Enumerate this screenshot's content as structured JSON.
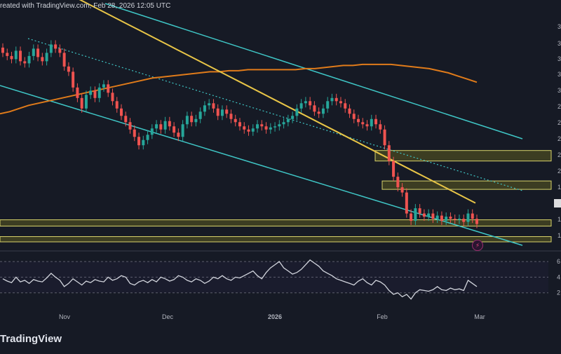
{
  "header": {
    "text": "reated with TradingView.com, Feb 28, 2026 12:05 UTC"
  },
  "brand": {
    "logo_text": "TradingView"
  },
  "icons": {
    "alert": "lightning-icon"
  },
  "colors": {
    "background": "#161a25",
    "up_candle": "#26a69a",
    "down_candle": "#ef5350",
    "ma_orange": "#e07b1a",
    "ma_yellow": "#e8c547",
    "channel_cyan": "#3fc6c6",
    "zone_fill": "#4a4a22",
    "zone_border": "#d8d36a",
    "rsi_line": "#d1d4dc"
  },
  "chart_data": {
    "type": "candlestick",
    "title": "",
    "x_axis": {
      "tick_labels": [
        "Nov",
        "Dec",
        "2026",
        "Feb",
        "Mar"
      ]
    },
    "y_axis_rsi": {
      "tick_labels": [
        "6",
        "4",
        "2"
      ],
      "levels": [
        70,
        50,
        30
      ]
    },
    "price_scale_labels_partial": [
      "3",
      "3",
      "3",
      "3",
      "3",
      "2",
      "2",
      "2",
      "2",
      "2",
      "1",
      "1",
      "1"
    ],
    "candle_closes": [
      3.58,
      3.55,
      3.52,
      3.6,
      3.5,
      3.48,
      3.55,
      3.62,
      3.54,
      3.5,
      3.58,
      3.66,
      3.62,
      3.58,
      3.45,
      3.4,
      3.25,
      3.15,
      3.05,
      3.18,
      3.22,
      3.15,
      3.25,
      3.28,
      3.2,
      3.12,
      3.05,
      2.98,
      2.92,
      2.85,
      2.78,
      2.7,
      2.75,
      2.8,
      2.86,
      2.9,
      2.85,
      2.93,
      2.88,
      2.82,
      2.78,
      2.9,
      2.98,
      2.92,
      2.95,
      3.02,
      3.08,
      3.1,
      3.05,
      2.98,
      3.04,
      3.0,
      2.95,
      2.92,
      2.88,
      2.85,
      2.83,
      2.86,
      2.9,
      2.88,
      2.85,
      2.87,
      2.88,
      2.9,
      2.92,
      2.95,
      2.98,
      3.05,
      3.1,
      3.12,
      3.08,
      3.02,
      3.0,
      3.05,
      3.12,
      3.15,
      3.12,
      3.1,
      3.05,
      3.0,
      2.95,
      2.92,
      2.9,
      2.88,
      2.95,
      2.9,
      2.85,
      2.7,
      2.55,
      2.4,
      2.3,
      2.25,
      2.05,
      1.98,
      2.1,
      2.05,
      2.02,
      2.05,
      2.0,
      2.03,
      1.98,
      2.02,
      2.0,
      1.99,
      2.0,
      1.97,
      2.05,
      2.0,
      1.95
    ],
    "moving_averages": [
      {
        "color": "orange",
        "values": [
          3.0,
          3.02,
          3.05,
          3.08,
          3.1,
          3.12,
          3.14,
          3.16,
          3.18,
          3.2,
          3.22,
          3.24,
          3.26,
          3.28,
          3.3,
          3.32,
          3.34,
          3.35,
          3.36,
          3.37,
          3.38,
          3.39,
          3.4,
          3.4,
          3.41,
          3.41,
          3.42,
          3.42,
          3.42,
          3.42,
          3.42,
          3.42,
          3.43,
          3.43,
          3.44,
          3.45,
          3.46,
          3.46,
          3.47,
          3.47,
          3.47,
          3.47,
          3.46,
          3.45,
          3.44,
          3.43,
          3.41,
          3.39,
          3.36,
          3.33,
          3.3
        ]
      },
      {
        "color": "yellow",
        "values": [
          4.1,
          4.05,
          4.0,
          3.95,
          3.9,
          3.85,
          3.8,
          3.75,
          3.7,
          3.65,
          3.6,
          3.55,
          3.5,
          3.45,
          3.4,
          3.35,
          3.3,
          3.25,
          3.2,
          3.15,
          3.1,
          3.05,
          3.0,
          2.95,
          2.9,
          2.85,
          2.8,
          2.75,
          2.7,
          2.65,
          2.6,
          2.55,
          2.5,
          2.45,
          2.4,
          2.35,
          2.3,
          2.25,
          2.2,
          2.15
        ]
      }
    ],
    "rsi_values": [
      48,
      45,
      43,
      50,
      44,
      46,
      42,
      47,
      45,
      44,
      49,
      55,
      50,
      46,
      38,
      42,
      48,
      44,
      40,
      45,
      43,
      47,
      45,
      44,
      50,
      46,
      48,
      52,
      50,
      42,
      40,
      44,
      46,
      43,
      47,
      44,
      50,
      48,
      45,
      47,
      52,
      50,
      46,
      44,
      48,
      46,
      42,
      45,
      50,
      48,
      52,
      48,
      46,
      50,
      49,
      52,
      55,
      58,
      52,
      48,
      56,
      62,
      66,
      70,
      62,
      58,
      54,
      56,
      60,
      66,
      72,
      68,
      64,
      58,
      55,
      52,
      48,
      46,
      44,
      42,
      40,
      45,
      48,
      43,
      40,
      46,
      44,
      40,
      33,
      28,
      30,
      25,
      28,
      22,
      30,
      34,
      33,
      32,
      34,
      38,
      34,
      33,
      36,
      34,
      35,
      33,
      46,
      42,
      38
    ],
    "zones": [
      {
        "label": "upper resistance zone",
        "from": 2.55,
        "to": 2.65
      },
      {
        "label": "resistance zone",
        "from": 2.28,
        "to": 2.36
      },
      {
        "label": "support zone",
        "from": 1.93,
        "to": 1.99
      },
      {
        "label": "lower support zone",
        "from": 1.78,
        "to": 1.83
      }
    ],
    "grid": false,
    "legend": "none"
  }
}
